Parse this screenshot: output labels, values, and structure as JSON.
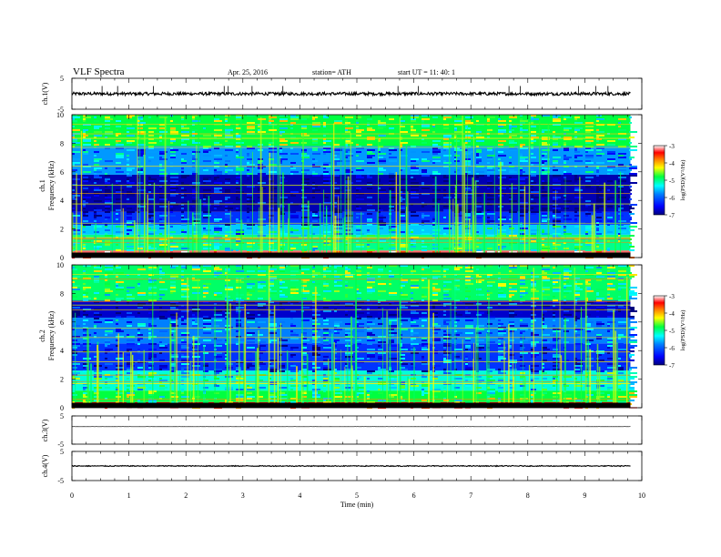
{
  "header": {
    "title": "VLF Spectra",
    "date": "Apr. 25, 2016",
    "station": "station= ATH",
    "start": "start  UT =   11: 40: 1"
  },
  "chart_data": [
    {
      "type": "line",
      "ylabel": "ch.1(V)",
      "ylim": [
        -5,
        5
      ],
      "yticks": [
        "5",
        "-5"
      ],
      "series": [
        {
          "baseline": 0.0,
          "noise": 0.5,
          "spikes": 14
        }
      ]
    },
    {
      "type": "heatmap",
      "ylabel_line1": "ch.1",
      "ylabel_line2": "Frequency (kHz)",
      "ylim": [
        0,
        10
      ],
      "yticks": [
        "0",
        "2",
        "4",
        "6",
        "8",
        "10"
      ],
      "colorbar": {
        "label": "log(PSD)(V²/Hz)",
        "ticks": [
          "-3",
          "-4",
          "-5",
          "-6",
          "-7"
        ],
        "range": [
          -7,
          -3
        ]
      },
      "bands": [
        {
          "kHz": [
            0.0,
            0.5
          ],
          "level": -3.3
        },
        {
          "kHz": [
            0.5,
            1.6
          ],
          "level": -5.2
        },
        {
          "kHz": [
            1.6,
            2.3
          ],
          "level": -5.7
        },
        {
          "kHz": [
            2.3,
            3.2
          ],
          "level": -6.3
        },
        {
          "kHz": [
            3.2,
            5.8
          ],
          "level": -6.8
        },
        {
          "kHz": [
            5.8,
            7.8
          ],
          "level": -5.9
        },
        {
          "kHz": [
            7.8,
            10.0
          ],
          "level": -5.0
        }
      ]
    },
    {
      "type": "heatmap",
      "ylabel_line1": "ch.2",
      "ylabel_line2": "Frequency (kHz)",
      "ylim": [
        0,
        10
      ],
      "yticks": [
        "0",
        "2",
        "4",
        "6",
        "8",
        "10"
      ],
      "colorbar": {
        "label": "log(PSD)(V²/Hz)",
        "ticks": [
          "-3",
          "-4",
          "-5",
          "-6",
          "-7"
        ],
        "range": [
          -7,
          -3
        ]
      },
      "bands": [
        {
          "kHz": [
            0.0,
            0.4
          ],
          "level": -3.5
        },
        {
          "kHz": [
            0.4,
            1.2
          ],
          "level": -5.0
        },
        {
          "kHz": [
            1.2,
            2.6
          ],
          "level": -5.4
        },
        {
          "kHz": [
            2.6,
            4.5
          ],
          "level": -6.3
        },
        {
          "kHz": [
            4.5,
            6.3
          ],
          "level": -6.0
        },
        {
          "kHz": [
            6.3,
            7.5
          ],
          "level": -6.7
        },
        {
          "kHz": [
            7.5,
            10.0
          ],
          "level": -5.1
        }
      ]
    },
    {
      "type": "line",
      "ylabel": "ch.3(V)",
      "ylim": [
        -5,
        5
      ],
      "yticks": [
        "5",
        "-5"
      ],
      "series": [
        {
          "baseline": 1.2,
          "noise": 0.02,
          "spikes": 0
        }
      ]
    },
    {
      "type": "line",
      "ylabel": "ch.4(V)",
      "ylim": [
        -5,
        5
      ],
      "yticks": [
        "5",
        "-5"
      ],
      "series": [
        {
          "baseline": 0.0,
          "noise": 0.15,
          "spikes": 0
        }
      ]
    }
  ],
  "xaxis": {
    "label": "Time  (min)",
    "ticks": [
      "0",
      "1",
      "2",
      "3",
      "4",
      "5",
      "6",
      "7",
      "8",
      "9",
      "10"
    ],
    "range": [
      0,
      10
    ],
    "data_end": 9.8
  },
  "colors": {
    "ink": "#000000",
    "colormap": [
      "#00007f",
      "#0000ff",
      "#0080ff",
      "#00ffff",
      "#00ff40",
      "#ffff00",
      "#ff8000",
      "#ff0000",
      "#ffffff"
    ]
  }
}
